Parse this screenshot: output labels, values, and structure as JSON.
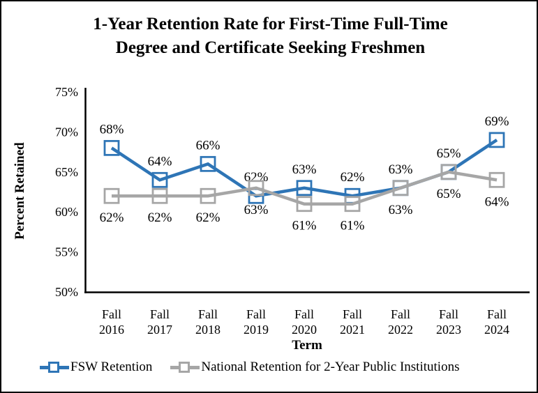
{
  "chart_data": {
    "type": "line",
    "title": "1-Year Retention Rate for First-Time Full-Time Degree and Certificate Seeking Freshmen",
    "title_line1": "1-Year Retention Rate for First-Time Full-Time",
    "title_line2": "Degree and Certificate Seeking Freshmen",
    "xlabel": "Term",
    "ylabel": "Percent Retained",
    "ylim": [
      50,
      75
    ],
    "ytick_values": [
      75,
      70,
      65,
      60,
      55,
      50
    ],
    "ytick_suffix": "%",
    "grid": false,
    "legend_position": "bottom-left",
    "background": "#FFFFFF",
    "axis_color": "#000000",
    "border_color": "#000000",
    "categories": [
      "Fall 2016",
      "Fall 2017",
      "Fall 2018",
      "Fall 2019",
      "Fall 2020",
      "Fall 2021",
      "Fall 2022",
      "Fall 2023",
      "Fall 2024"
    ],
    "series": [
      {
        "name": "FSW Retention",
        "color": "#2E75B6",
        "marker": "hollow-square",
        "label_position": "above",
        "values": [
          68,
          64,
          66,
          62,
          63,
          62,
          63,
          65,
          69
        ]
      },
      {
        "name": "National Retention for 2-Year Public Institutions",
        "color": "#A6A6A6",
        "marker": "hollow-square",
        "label_position": "below",
        "values": [
          62,
          62,
          62,
          63,
          61,
          61,
          63,
          65,
          64
        ]
      }
    ]
  }
}
